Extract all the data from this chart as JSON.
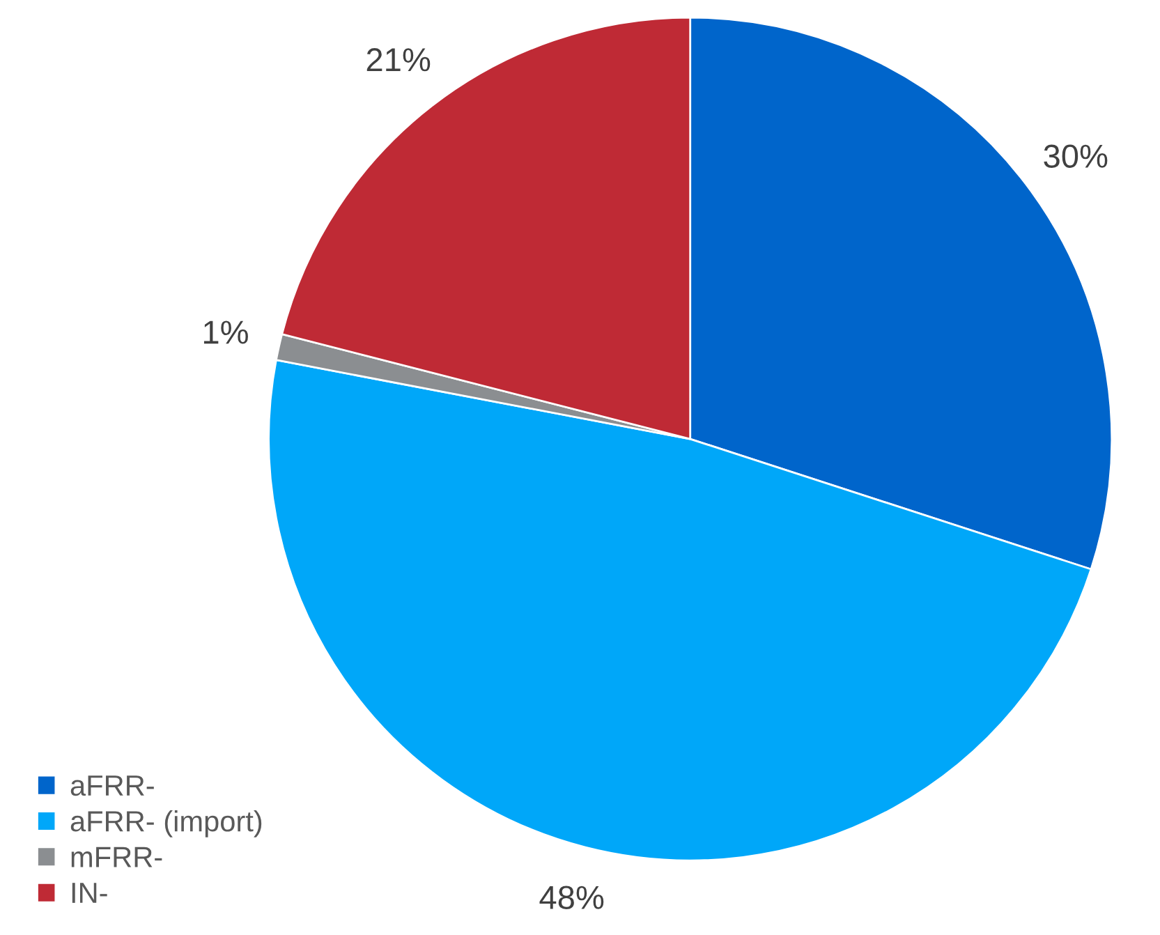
{
  "chart_data": {
    "type": "pie",
    "categories": [
      "aFRR-",
      "aFRR- (import)",
      "mFRR-",
      "IN-"
    ],
    "values": [
      30,
      48,
      1,
      21
    ],
    "colors": [
      "#0065cb",
      "#00a7f9",
      "#8b8e91",
      "#bf2a35"
    ],
    "value_labels": [
      "30%",
      "48%",
      "1%",
      "21%"
    ],
    "legend": "bottom left"
  }
}
